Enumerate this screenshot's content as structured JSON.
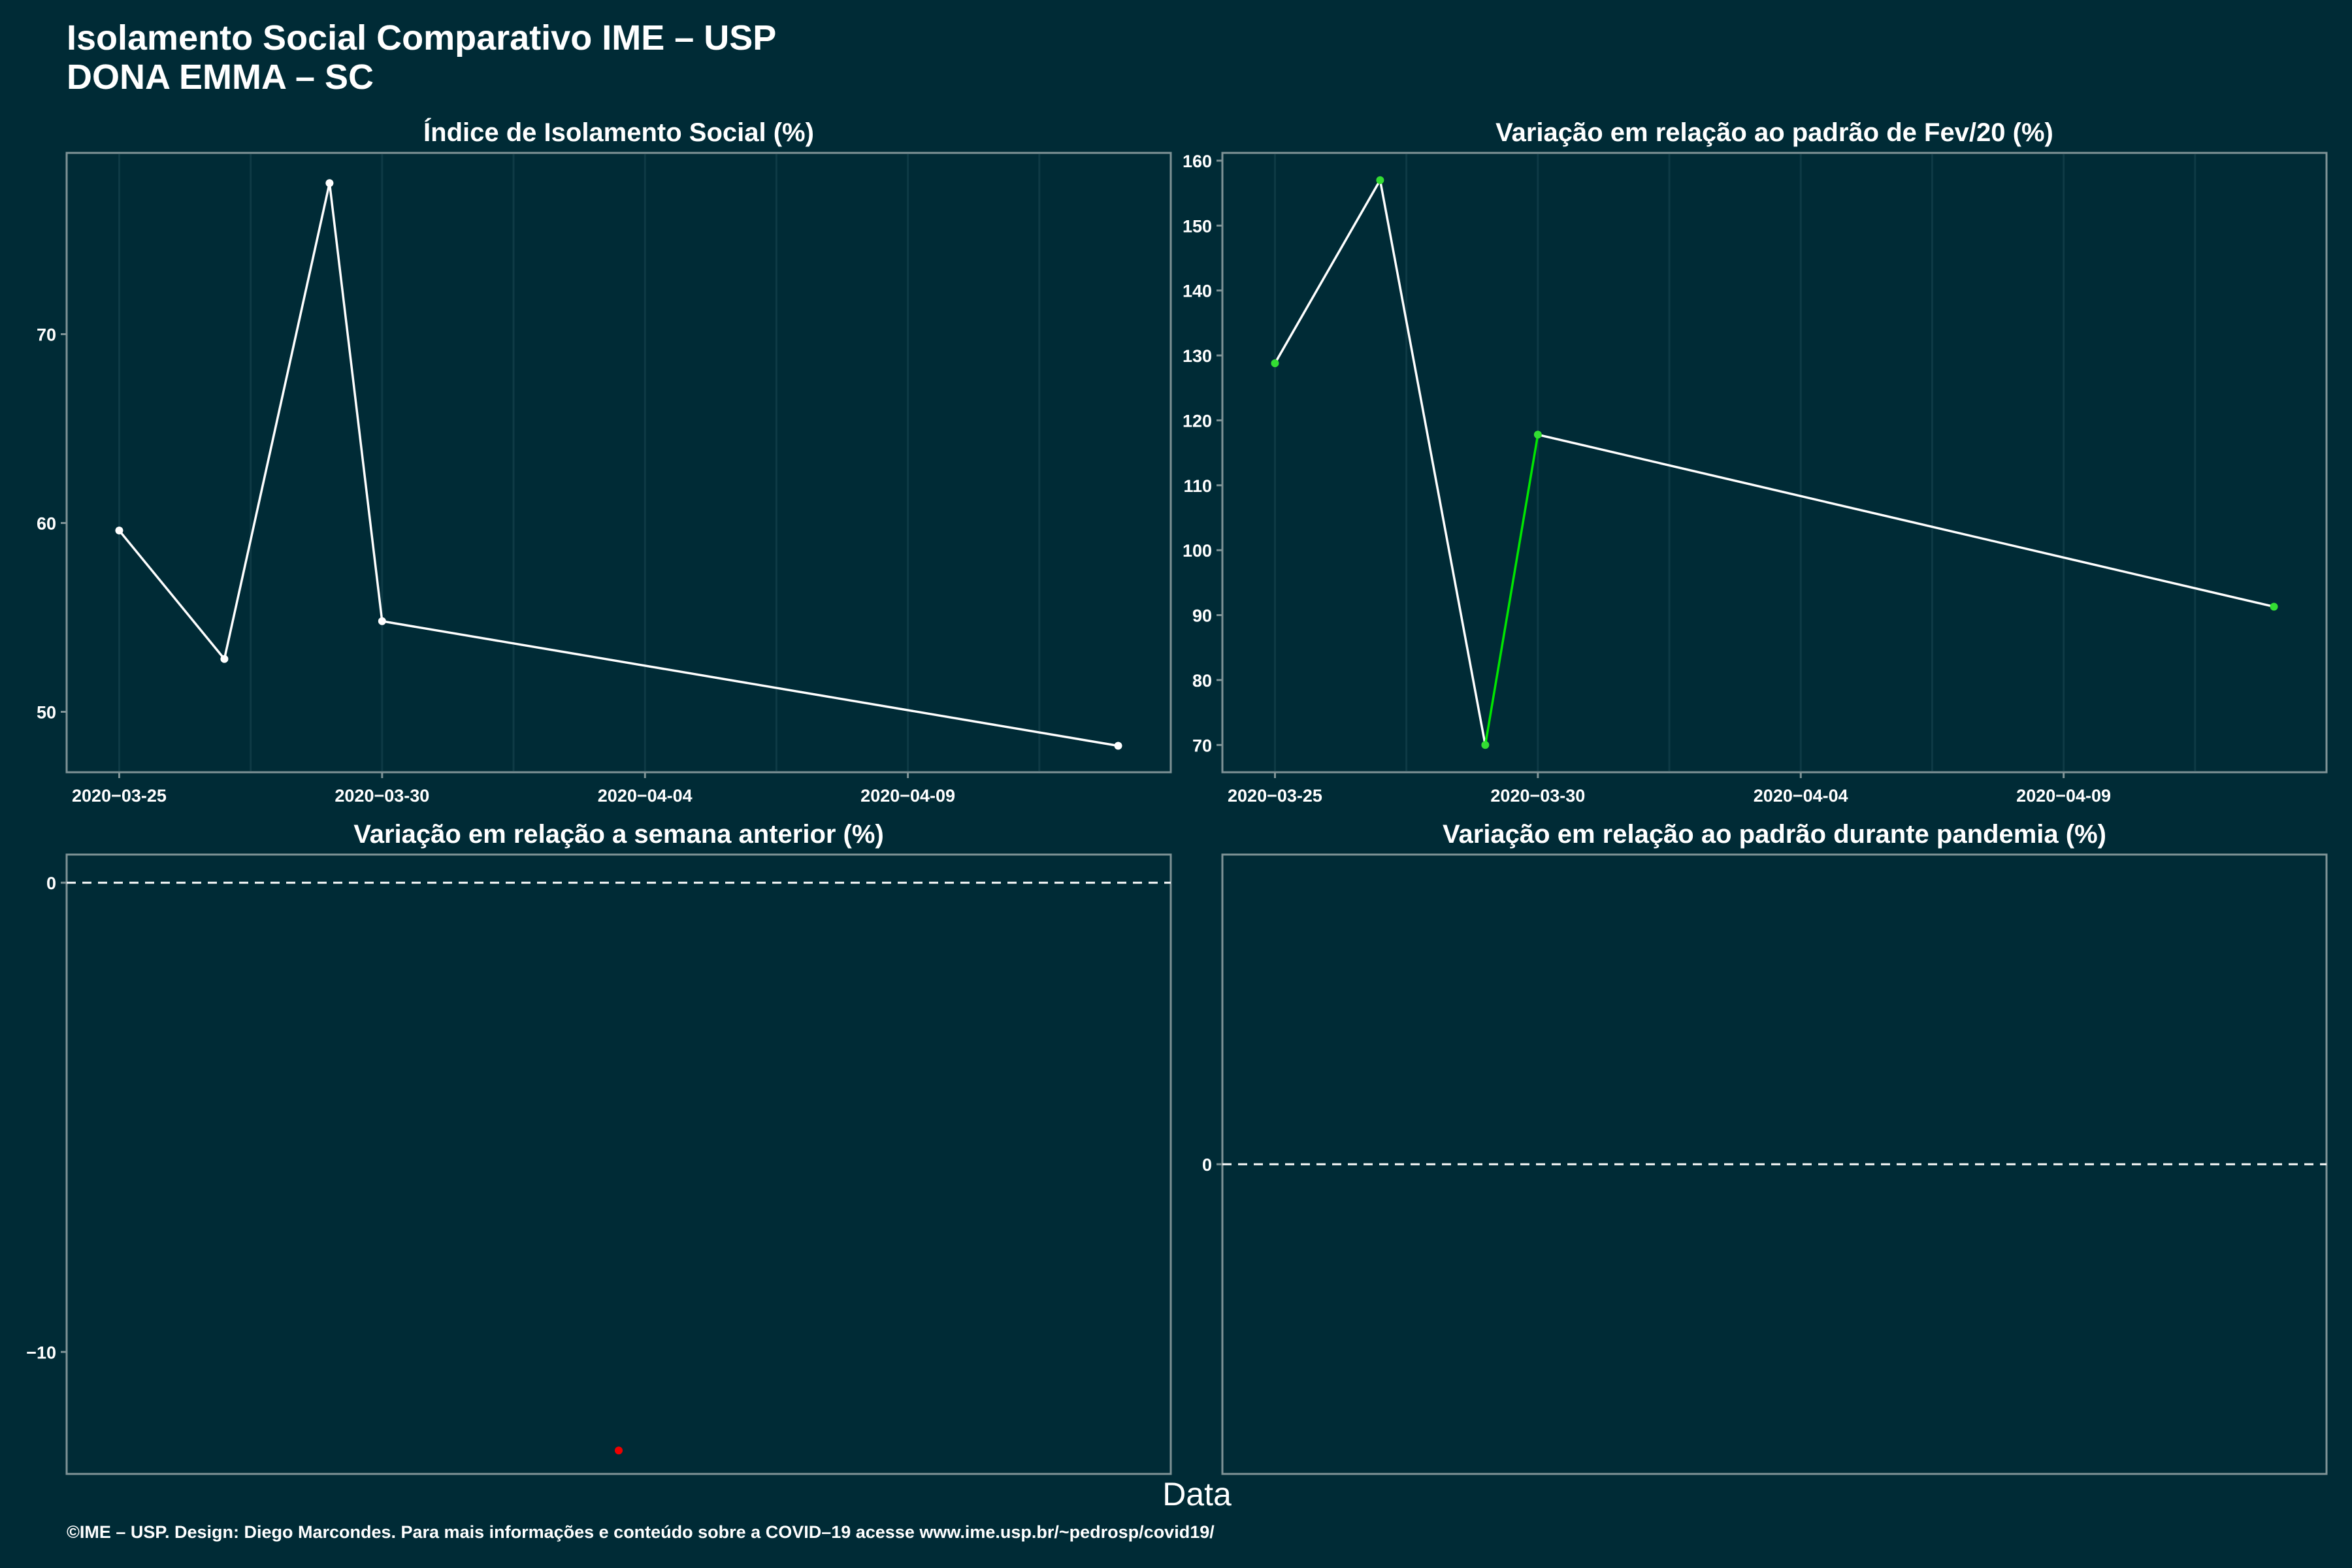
{
  "header": {
    "title_line1": "Isolamento Social Comparativo IME – USP",
    "title_line2": "DONA EMMA – SC"
  },
  "xlabel": "Data",
  "caption": "©IME – USP. Design: Diego Marcondes. Para mais informações e conteúdo sobre a COVID–19 acesse www.ime.usp.br/~pedrosp/covid19/",
  "colors": {
    "background": "#002b36",
    "panel_border": "#7f9396",
    "grid": "#0e3a45",
    "line_white": "#ffffff",
    "line_green": "#00e600",
    "point_green": "#33dd33",
    "point_red": "#ee0000"
  },
  "chart_data": [
    {
      "id": "isolamento",
      "type": "line",
      "title": "Índice de Isolamento Social (%)",
      "x": [
        "2020-03-25",
        "2020-03-27",
        "2020-03-29",
        "2020-03-30",
        "2020-04-13"
      ],
      "values": [
        59.6,
        52.8,
        78.0,
        54.8,
        48.2
      ],
      "point_color": "white",
      "ylim": [
        46.8,
        79.6
      ],
      "yticks": [
        50,
        60,
        70
      ],
      "xlim": [
        "2020-03-24",
        "2020-04-14"
      ],
      "xticks": [
        "2020-03-25",
        "2020-03-30",
        "2020-04-04",
        "2020-04-09"
      ],
      "grid": true
    },
    {
      "id": "fev20",
      "type": "line",
      "title": "Variação em relação ao padrão de Fev/20 (%)",
      "x": [
        "2020-03-25",
        "2020-03-27",
        "2020-03-29",
        "2020-03-30",
        "2020-04-13"
      ],
      "values": [
        128.8,
        157.0,
        70.0,
        117.8,
        91.3
      ],
      "segment_colors": [
        "white",
        "white",
        "green",
        "white"
      ],
      "point_color": "green",
      "ylim": [
        65.8,
        161.2
      ],
      "yticks": [
        70,
        80,
        90,
        100,
        110,
        120,
        130,
        140,
        150,
        160
      ],
      "xlim": [
        "2020-03-24",
        "2020-04-14"
      ],
      "xticks": [
        "2020-03-25",
        "2020-03-30",
        "2020-04-04",
        "2020-04-09"
      ],
      "grid": true
    },
    {
      "id": "semana",
      "type": "scatter",
      "title": "Variação em relação a semana anterior (%)",
      "values": [
        -12.1
      ],
      "point_color": "red",
      "ylim": [
        -12.6,
        0.6
      ],
      "yticks": [
        -10,
        0
      ],
      "hline": 0,
      "grid": false
    },
    {
      "id": "pandemia",
      "type": "scatter",
      "title": "Variação em relação ao padrão durante pandemia (%)",
      "values": [],
      "ylim": [
        -1,
        1
      ],
      "yticks": [
        0
      ],
      "hline": 0,
      "grid": false
    }
  ]
}
